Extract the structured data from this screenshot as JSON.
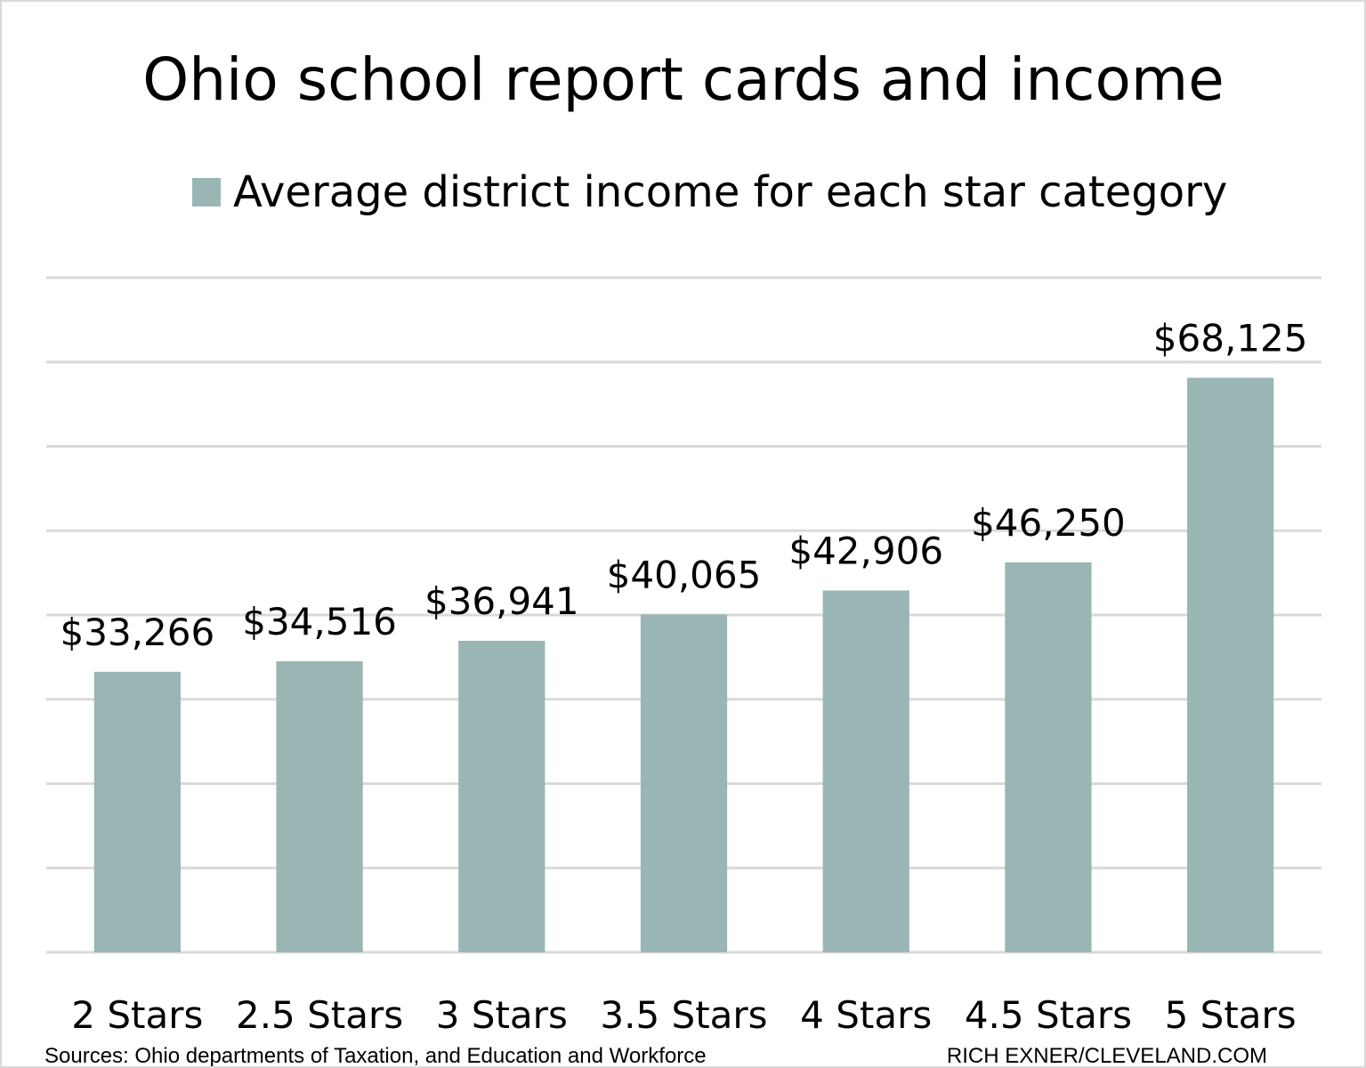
{
  "chart_data": {
    "type": "bar",
    "title": "Ohio school report cards and income",
    "legend": {
      "label": "Average district income for each star category",
      "position": "top"
    },
    "categories": [
      "2 Stars",
      "2.5 Stars",
      "3 Stars",
      "3.5 Stars",
      "4 Stars",
      "4.5 Stars",
      "5 Stars"
    ],
    "series": [
      {
        "name": "Average district income for each star category",
        "values": [
          33266,
          34516,
          36941,
          40065,
          42906,
          46250,
          68125
        ],
        "labels": [
          "$33,266",
          "$34,516",
          "$36,941",
          "$40,065",
          "$42,906",
          "$46,250",
          "$68,125"
        ]
      }
    ],
    "ylim": [
      0,
      80000
    ],
    "ytick_step": 10000,
    "y_tick_labels_shown": false,
    "grid": true,
    "xlabel": "",
    "ylabel": "",
    "bar_color": "#99b6b4",
    "grid_color": "#d9d9d9"
  },
  "footer": {
    "source": "Sources: Ohio departments of Taxation, and Education and Workforce",
    "credit": "RICH EXNER/CLEVELAND.COM"
  }
}
